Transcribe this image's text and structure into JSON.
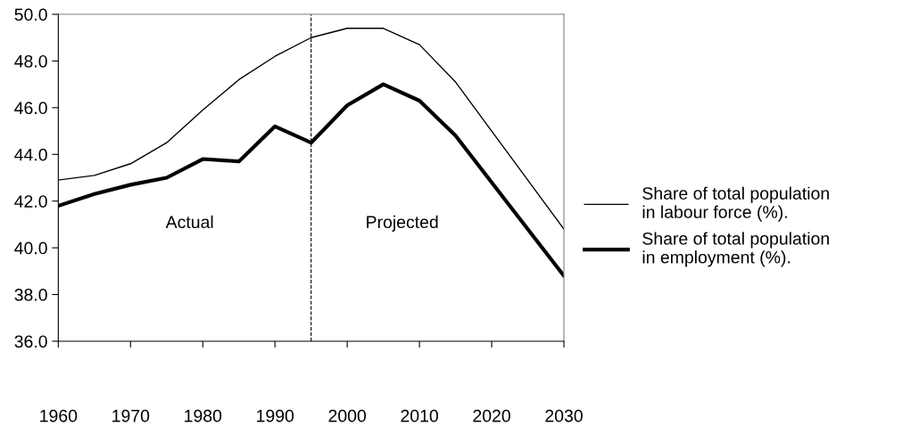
{
  "chart_data": {
    "type": "line",
    "x": [
      1960,
      1965,
      1970,
      1975,
      1980,
      1985,
      1990,
      1995,
      2000,
      2005,
      2010,
      2015,
      2020,
      2025,
      2030
    ],
    "series": [
      {
        "name": "Share of total population in labour force (%).",
        "color": "#000000",
        "values": [
          42.9,
          43.1,
          43.6,
          44.5,
          45.9,
          47.2,
          48.2,
          49.0,
          49.4,
          49.4,
          48.7,
          47.1,
          45.0,
          42.9,
          40.8
        ]
      },
      {
        "name": "Share of total population in employment (%).",
        "color": "#000000",
        "values": [
          41.8,
          42.3,
          42.7,
          43.0,
          43.8,
          43.7,
          45.2,
          44.5,
          46.1,
          47.0,
          46.3,
          44.8,
          42.8,
          40.8,
          38.8
        ]
      }
    ],
    "xlim": [
      1960,
      2030
    ],
    "xticks": [
      1960,
      1970,
      1980,
      1990,
      2000,
      2010,
      2020,
      2030
    ],
    "ylim": [
      36,
      50
    ],
    "yticks": [
      {
        "value": 36,
        "label": "36.0"
      },
      {
        "value": 38,
        "label": "38.0"
      },
      {
        "value": 40,
        "label": "40.0"
      },
      {
        "value": 42,
        "label": "42.0"
      },
      {
        "value": 44,
        "label": "44.0"
      },
      {
        "value": 46,
        "label": "46.0"
      },
      {
        "value": 48,
        "label": "48.0"
      },
      {
        "value": 50,
        "label": "50.0"
      }
    ],
    "ref_lines": [
      {
        "axis": "x",
        "value": 1995,
        "color": "#000000",
        "line_style": "dashed"
      }
    ],
    "annotations": [
      "Actual",
      "Projected"
    ],
    "grid": false,
    "legend": "right",
    "marker": "none",
    "line_style": "solid"
  }
}
